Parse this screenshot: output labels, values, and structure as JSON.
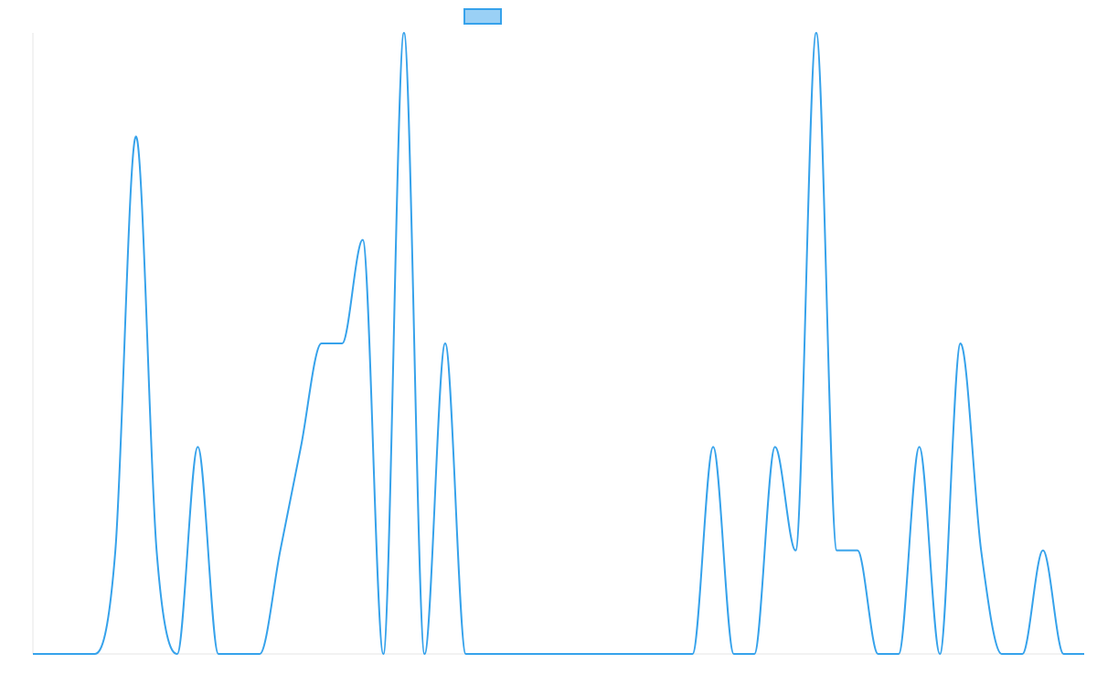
{
  "colors": {
    "line": "#36a2eb",
    "legend_fill": "#9ad0f5",
    "axis": "#e5e5e5"
  },
  "legend": {
    "label": ""
  },
  "chart_data": {
    "type": "line",
    "interpolation": "smooth",
    "title": "",
    "xlabel": "",
    "ylabel": "",
    "legend_position": "top-center",
    "grid": false,
    "ylim": [
      0,
      6
    ],
    "x": [
      0,
      1,
      2,
      3,
      4,
      5,
      6,
      7,
      8,
      9,
      10,
      11,
      12,
      13,
      14,
      15,
      16,
      17,
      18,
      19,
      20,
      21,
      22,
      23,
      24,
      25,
      26,
      27,
      28,
      29,
      30,
      31,
      32,
      33,
      34,
      35,
      36,
      37,
      38,
      39,
      40,
      41,
      42,
      43,
      44,
      45,
      46,
      47,
      48,
      49,
      50,
      51
    ],
    "series": [
      {
        "name": "",
        "values": [
          0,
          0,
          0,
          0,
          1,
          5,
          1,
          0,
          2,
          0,
          0,
          0,
          1,
          2,
          3,
          3,
          4,
          0,
          6,
          0,
          3,
          0,
          0,
          0,
          0,
          0,
          0,
          0,
          0,
          0,
          0,
          0,
          0,
          2,
          0,
          0,
          2,
          1,
          6,
          1,
          1,
          0,
          0,
          2,
          0,
          3,
          1,
          0,
          0,
          1,
          0,
          0
        ]
      }
    ]
  }
}
